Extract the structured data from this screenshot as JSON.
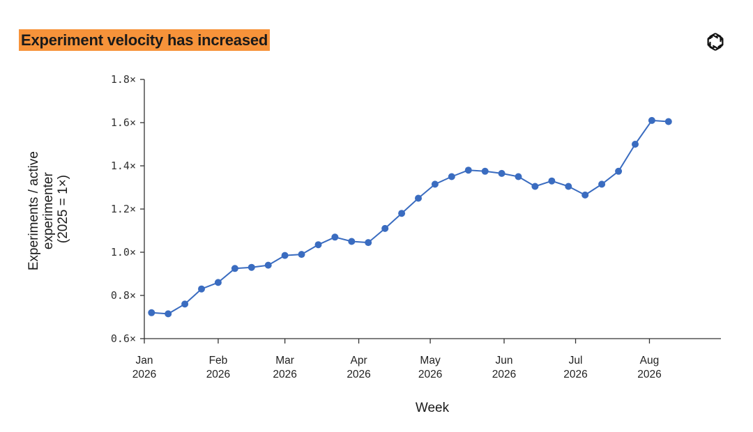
{
  "header": {
    "title": "Experiment velocity has increased",
    "logo_icon": "openai-logo-icon"
  },
  "chart_data": {
    "type": "line",
    "title": "Experiment velocity has increased",
    "xlabel": "Week",
    "ylabel": [
      "Experiments / active",
      "experimenter",
      "(2025 = 1×)"
    ],
    "ylim": [
      0.6,
      1.8
    ],
    "yticks": [
      {
        "value": 0.6,
        "label": "0.6×"
      },
      {
        "value": 0.8,
        "label": "0.8×"
      },
      {
        "value": 1.0,
        "label": "1.0×"
      },
      {
        "value": 1.2,
        "label": "1.2×"
      },
      {
        "value": 1.4,
        "label": "1.4×"
      },
      {
        "value": 1.6,
        "label": "1.6×"
      },
      {
        "value": 1.8,
        "label": "1.8×"
      }
    ],
    "xlim": [
      "2026-01-01",
      "2026-08-31"
    ],
    "xticks": [
      {
        "date": "2026-01-01",
        "label": [
          "Jan",
          "2026"
        ]
      },
      {
        "date": "2026-02-01",
        "label": [
          "Feb",
          "2026"
        ]
      },
      {
        "date": "2026-03-01",
        "label": [
          "Mar",
          "2026"
        ]
      },
      {
        "date": "2026-04-01",
        "label": [
          "Apr",
          "2026"
        ]
      },
      {
        "date": "2026-05-01",
        "label": [
          "May",
          "2026"
        ]
      },
      {
        "date": "2026-06-01",
        "label": [
          "Jun",
          "2026"
        ]
      },
      {
        "date": "2026-07-01",
        "label": [
          "Jul",
          "2026"
        ]
      },
      {
        "date": "2026-08-01",
        "label": [
          "Aug",
          "2026"
        ]
      }
    ],
    "grid": false,
    "line_color": "#3a6cc0",
    "series": [
      {
        "x": [
          "2026-01-04",
          "2026-01-11",
          "2026-01-18",
          "2026-01-25",
          "2026-02-01",
          "2026-02-08",
          "2026-02-15",
          "2026-02-22",
          "2026-03-01",
          "2026-03-08",
          "2026-03-15",
          "2026-03-22",
          "2026-03-29",
          "2026-04-05",
          "2026-04-12",
          "2026-04-19",
          "2026-04-26",
          "2026-05-03",
          "2026-05-10",
          "2026-05-17",
          "2026-05-24",
          "2026-05-31",
          "2026-06-07",
          "2026-06-14",
          "2026-06-21",
          "2026-06-28",
          "2026-07-05",
          "2026-07-12",
          "2026-07-19",
          "2026-07-26",
          "2026-08-02",
          "2026-08-09"
        ],
        "values": [
          0.72,
          0.715,
          0.76,
          0.83,
          0.86,
          0.925,
          0.93,
          0.94,
          0.985,
          0.99,
          1.035,
          1.07,
          1.05,
          1.045,
          1.11,
          1.18,
          1.25,
          1.315,
          1.35,
          1.38,
          1.375,
          1.365,
          1.35,
          1.305,
          1.33,
          1.305,
          1.265,
          1.315,
          1.375,
          1.5,
          1.61,
          1.605
        ]
      }
    ]
  }
}
